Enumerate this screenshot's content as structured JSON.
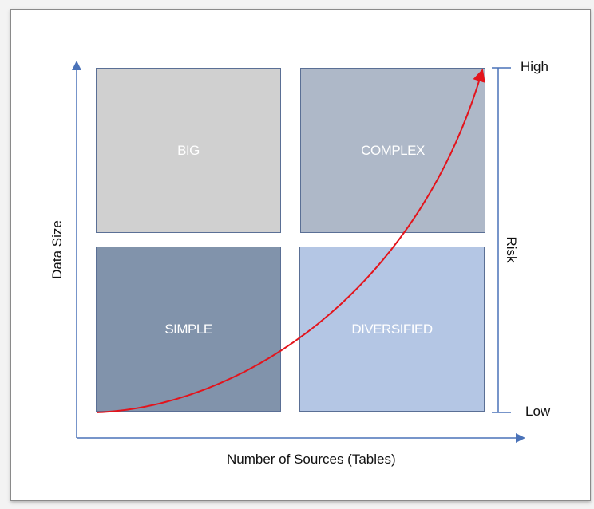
{
  "quadrants": [
    {
      "label": "BIG",
      "color": "#d0d0d0"
    },
    {
      "label": "COMPLEX",
      "color": "#aeb8c8"
    },
    {
      "label": "SIMPLE",
      "color": "#8193ab"
    },
    {
      "label": "DIVERSIFIED",
      "color": "#b4c6e4"
    }
  ],
  "axes": {
    "y_label": "Data Size",
    "x_label": "Number of Sources (Tables)",
    "risk_label": "Risk",
    "risk_high": "High",
    "risk_low": "Low",
    "axis_color": "#4a72b8"
  },
  "curve_color": "#e3141c"
}
